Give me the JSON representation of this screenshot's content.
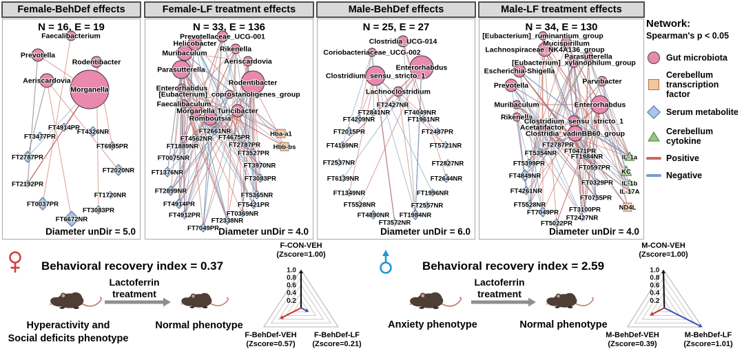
{
  "colors": {
    "panel_header_bg": "#d9d9d9",
    "microbiota": "#e989ae",
    "tf": "#f5c59c",
    "metabolite": "#a9c6e8",
    "cytokine": "#8fc97e",
    "positive": "#c96a5e",
    "negative": "#7b9cc0",
    "female": "#d43c3c",
    "male": "#2196d3"
  },
  "node_schema": [
    "label",
    "type(g=gut microbiota, t=transcription factor, s=serum metabolite, c=cytokine)",
    "x",
    "y",
    "r"
  ],
  "panels": [
    {
      "title": "Female-BehDef effects",
      "stats": "N = 16, E = 19",
      "diameter": "Diameter unDir = 5.0",
      "edge_count": 19,
      "nodes": [
        [
          "Faecalibacterium",
          "g",
          103,
          52,
          7
        ],
        [
          "Prevotella",
          "g",
          55,
          80,
          9
        ],
        [
          "Rodentibacter",
          "g",
          140,
          90,
          8
        ],
        [
          "Aeriscardovia",
          "g",
          68,
          117,
          10
        ],
        [
          "Morganella",
          "g",
          130,
          130,
          28
        ],
        [
          "FT4914PR",
          "s",
          93,
          185,
          6
        ],
        [
          "FT4326NR",
          "s",
          135,
          191,
          7
        ],
        [
          "FT3477PR",
          "s",
          58,
          198,
          6
        ],
        [
          "FT6985PR",
          "s",
          163,
          212,
          6
        ],
        [
          "FT2787PR",
          "s",
          40,
          228,
          8
        ],
        [
          "FT2020NR",
          "s",
          172,
          247,
          8
        ],
        [
          "FT2192PR",
          "s",
          40,
          267,
          5
        ],
        [
          "FT1720NR",
          "s",
          160,
          283,
          5
        ],
        [
          "FT0037PR",
          "s",
          62,
          296,
          9
        ],
        [
          "FT3083PR",
          "s",
          143,
          305,
          6
        ],
        [
          "FT6672NR",
          "s",
          104,
          318,
          11
        ]
      ]
    },
    {
      "title": "Female-LF treatment effects",
      "stats": "N = 33, E = 136",
      "diameter": "Diameter unDir = 4.0",
      "edge_count": 136,
      "nodes": [
        [
          "Prevotellaceae_UCG-001",
          "g",
          323,
          53,
          8
        ],
        [
          "Helicobacter",
          "g",
          283,
          63,
          10
        ],
        [
          "Muribaculum",
          "g",
          268,
          77,
          11
        ],
        [
          "Rikenella",
          "g",
          342,
          71,
          7
        ],
        [
          "Aeriscardovia",
          "g",
          360,
          89,
          7
        ],
        [
          "Parasutterella",
          "g",
          263,
          101,
          13
        ],
        [
          "Rodentibacter",
          "g",
          367,
          120,
          17
        ],
        [
          "Enterorhabdus",
          "g",
          264,
          128,
          6
        ],
        [
          "[Eubacterium]_coprostanoligenes_group",
          "g",
          333,
          137,
          6
        ],
        [
          "Faecalibaculum",
          "g",
          267,
          151,
          6
        ],
        [
          "Morganella",
          "g",
          284,
          161,
          9
        ],
        [
          "Turicibacter",
          "g",
          345,
          161,
          9
        ],
        [
          "Romboutsia",
          "g",
          305,
          172,
          10
        ],
        [
          "Hba-a1",
          "t",
          408,
          194,
          6
        ],
        [
          "Hbb-bs",
          "t",
          413,
          213,
          6
        ],
        [
          "FT2661NR",
          "s",
          312,
          190,
          6
        ],
        [
          "FT4562NR",
          "s",
          285,
          201,
          5
        ],
        [
          "FT4675PR",
          "s",
          340,
          199,
          5
        ],
        [
          "FT1889NR",
          "s",
          265,
          212,
          5
        ],
        [
          "FT2787PR",
          "s",
          355,
          210,
          5
        ],
        [
          "FT0075NR",
          "s",
          252,
          229,
          5
        ],
        [
          "FT3527PR",
          "s",
          368,
          222,
          5
        ],
        [
          "FT3970NR",
          "s",
          377,
          240,
          5
        ],
        [
          "FT1376NR",
          "s",
          243,
          250,
          7
        ],
        [
          "FT3083PR",
          "s",
          378,
          259,
          6
        ],
        [
          "FT2899NR",
          "s",
          248,
          277,
          7
        ],
        [
          "FT5365NR",
          "s",
          373,
          283,
          6
        ],
        [
          "FT4914PR",
          "s",
          260,
          296,
          7
        ],
        [
          "FT5421PR",
          "s",
          368,
          297,
          6
        ],
        [
          "FT4912PR",
          "s",
          268,
          312,
          6
        ],
        [
          "FT0369NR",
          "s",
          352,
          310,
          5
        ],
        [
          "FT2338NR",
          "s",
          330,
          320,
          6
        ],
        [
          "FT7049PR",
          "s",
          295,
          331,
          6
        ]
      ]
    },
    {
      "title": "Male-BehDef effects",
      "stats": "N = 25, E = 27",
      "diameter": "Diameter unDir = 6.0",
      "edge_count": 27,
      "nodes": [
        [
          "Clostridia_UCG-014",
          "g",
          585,
          60,
          8
        ],
        [
          "Coriobacteriaceae_UCG-002",
          "g",
          540,
          76,
          6
        ],
        [
          "Enterorhabdus",
          "g",
          612,
          98,
          17
        ],
        [
          "Clostridium_sensu_stricto_1",
          "g",
          545,
          110,
          14
        ],
        [
          "Lachnoclostridium",
          "g",
          578,
          133,
          7
        ],
        [
          "FT2427NR",
          "s",
          570,
          152,
          5
        ],
        [
          "FT2841NR",
          "s",
          543,
          163,
          5
        ],
        [
          "FT4049NR",
          "s",
          610,
          163,
          5
        ],
        [
          "FT4209NR",
          "s",
          521,
          173,
          6
        ],
        [
          "FT1961NR",
          "s",
          615,
          173,
          5
        ],
        [
          "FT2015PR",
          "s",
          507,
          191,
          6
        ],
        [
          "FT2487PR",
          "s",
          635,
          191,
          5
        ],
        [
          "FT4169NR",
          "s",
          497,
          211,
          5
        ],
        [
          "FT5721NR",
          "s",
          647,
          211,
          5
        ],
        [
          "FT2537NR",
          "s",
          492,
          236,
          5
        ],
        [
          "FT2827NR",
          "s",
          650,
          237,
          5
        ],
        [
          "FT6139NR",
          "s",
          498,
          259,
          5
        ],
        [
          "FT2644NR",
          "s",
          648,
          259,
          6
        ],
        [
          "FT1349NR",
          "s",
          507,
          280,
          5
        ],
        [
          "FT1996NR",
          "s",
          628,
          280,
          5
        ],
        [
          "FT5528NR",
          "s",
          522,
          297,
          5
        ],
        [
          "FT2557NR",
          "s",
          620,
          298,
          5
        ],
        [
          "FT4890NR",
          "s",
          542,
          312,
          6
        ],
        [
          "FT1984NR",
          "s",
          603,
          312,
          7
        ],
        [
          "FT3572NR",
          "s",
          573,
          323,
          5
        ]
      ]
    },
    {
      "title": "Male-LF treatment effects",
      "stats": "N = 34, E = 130",
      "diameter": "Diameter unDir = 4.0",
      "edge_count": 130,
      "nodes": [
        [
          "[Eubacterium]_ruminantium_group",
          "g",
          788,
          52,
          6
        ],
        [
          "Mucispirillum",
          "g",
          822,
          63,
          8
        ],
        [
          "Lachnospiraceae_NK4A136_group",
          "g",
          791,
          72,
          10
        ],
        [
          "Parasutterella",
          "g",
          854,
          82,
          7
        ],
        [
          "[Eubacterium]_xylanophilum_group",
          "g",
          833,
          91,
          7
        ],
        [
          "Escherichia-Shigella",
          "g",
          754,
          103,
          9
        ],
        [
          "Parvibacter",
          "g",
          874,
          118,
          7
        ],
        [
          "Prevotella",
          "g",
          742,
          124,
          9
        ],
        [
          "Muribaculum",
          "g",
          750,
          152,
          6
        ],
        [
          "Enterorhabdus",
          "g",
          871,
          152,
          13
        ],
        [
          "Rikenella",
          "g",
          750,
          170,
          6
        ],
        [
          "Clostridium_sensu_stricto_1",
          "g",
          833,
          176,
          8
        ],
        [
          "Acetatifactor",
          "g",
          787,
          185,
          7
        ],
        [
          "Clostridia_vadinBB60_group",
          "g",
          835,
          194,
          11
        ],
        [
          "FT2787PR",
          "s",
          810,
          210,
          6
        ],
        [
          "FT5354NR",
          "s",
          785,
          222,
          6
        ],
        [
          "FT0471PR",
          "s",
          842,
          219,
          5
        ],
        [
          "FT1984NR",
          "s",
          852,
          227,
          5
        ],
        [
          "FT5399PR",
          "s",
          768,
          237,
          6
        ],
        [
          "FT0597PR",
          "s",
          863,
          243,
          5
        ],
        [
          "FT4849NR",
          "s",
          762,
          255,
          8
        ],
        [
          "FT0329PR",
          "s",
          867,
          265,
          5
        ],
        [
          "FT4261NR",
          "s",
          764,
          277,
          6
        ],
        [
          "FT0755PR",
          "s",
          865,
          287,
          5
        ],
        [
          "FT5528NR",
          "s",
          769,
          297,
          6
        ],
        [
          "FT3100PR",
          "s",
          849,
          304,
          5
        ],
        [
          "FT7049PR",
          "s",
          788,
          308,
          7
        ],
        [
          "FT2427NR",
          "s",
          845,
          316,
          5
        ],
        [
          "FT5022PR",
          "s",
          808,
          324,
          6
        ],
        [
          "IL-1a",
          "c",
          914,
          228,
          7
        ],
        [
          "KC",
          "c",
          909,
          249,
          8
        ],
        [
          "IL-1b",
          "c",
          914,
          266,
          5
        ],
        [
          "IL-17A",
          "c",
          914,
          278,
          4
        ],
        [
          "ND4L",
          "t",
          911,
          301,
          6
        ]
      ]
    }
  ],
  "legend": {
    "title": "Network:",
    "subtitle": "Spearman's p < 0.05",
    "items": [
      {
        "label": "Gut microbiota",
        "type": "microbiota"
      },
      {
        "label": "Cerebellum transcription factor",
        "type": "tf"
      },
      {
        "label": "Serum metabolite",
        "type": "metabolite"
      },
      {
        "label": "Cerebellum cytokine",
        "type": "cytokine"
      },
      {
        "label": "Positive",
        "type": "positive"
      },
      {
        "label": "Negative",
        "type": "negative"
      }
    ]
  },
  "bottom": {
    "female": {
      "index_text": "Behavioral recovery index = 0.37",
      "treatment_line1": "Lactoferrin",
      "treatment_line2": "treatment",
      "before_line1": "Hyperactivity and",
      "before_line2": "Social deficits phenotype",
      "after_label": "Normal phenotype"
    },
    "male": {
      "index_text": "Behavioral recovery index = 2.59",
      "treatment_line1": "Lactoferrin",
      "treatment_line2": "treatment",
      "before_label": "Anxiety phenotype",
      "after_label": "Normal phenotype"
    }
  },
  "radars": [
    {
      "ticks": [
        "1.0",
        "0.8",
        "0.6",
        "0.4",
        "0.2"
      ],
      "axes": [
        {
          "label": "F-CON-VEH",
          "sub": "(Zscore=1.00)",
          "value": 1.0,
          "color": "#141414"
        },
        {
          "label": "F-BehDef-VEH",
          "sub": "(Zscore=0.57)",
          "value": 0.57,
          "color": "#c83232"
        },
        {
          "label": "F-BehDef-LF",
          "sub": "(Zscore=0.21)",
          "value": 0.21,
          "color": "#3450b4"
        }
      ]
    },
    {
      "ticks": [
        "1.0",
        "0.8",
        "0.6",
        "0.4",
        "0.2"
      ],
      "axes": [
        {
          "label": "M-CON-VEH",
          "sub": "(Zscore=1.00)",
          "value": 1.0,
          "color": "#141414"
        },
        {
          "label": "M-BehDef-VEH",
          "sub": "(Zscore=0.39)",
          "value": 0.39,
          "color": "#c83232"
        },
        {
          "label": "M-BehDef-LF",
          "sub": "(Zscore=1.01)",
          "value": 1.01,
          "color": "#3450b4"
        }
      ]
    }
  ]
}
